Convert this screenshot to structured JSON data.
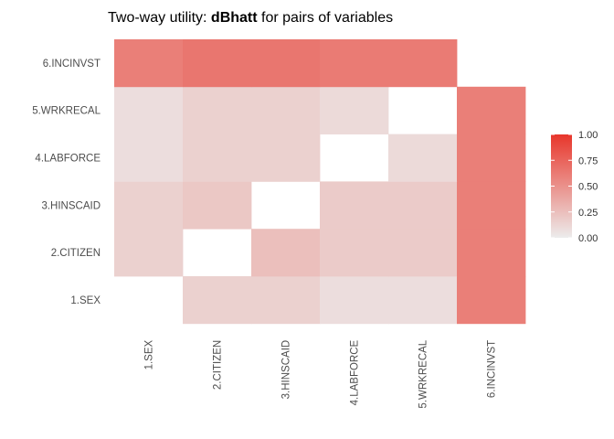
{
  "chart_data": {
    "type": "heatmap",
    "title_prefix": "Two-way utility: ",
    "title_bold": "dBhatt",
    "title_suffix": " for pairs of variables",
    "xlabel": "",
    "ylabel": "",
    "variables": [
      "1.SEX",
      "2.CITIZEN",
      "3.HINSCAID",
      "4.LABFORCE",
      "5.WRKRECAL",
      "6.INCINVST"
    ],
    "scale": {
      "min": 0,
      "max": 1,
      "low_color": "#ececec",
      "high_color": "#e8362b",
      "ticks": [
        "0.00",
        "0.25",
        "0.50",
        "0.75",
        "1.00"
      ]
    },
    "legend_position": "right",
    "grid": false,
    "cells": [
      {
        "x": "2.CITIZEN",
        "y": "1.SEX",
        "value": 0.15
      },
      {
        "x": "3.HINSCAID",
        "y": "1.SEX",
        "value": 0.15
      },
      {
        "x": "4.LABFORCE",
        "y": "1.SEX",
        "value": 0.08
      },
      {
        "x": "5.WRKRECAL",
        "y": "1.SEX",
        "value": 0.08
      },
      {
        "x": "6.INCINVST",
        "y": "1.SEX",
        "value": 0.6
      },
      {
        "x": "1.SEX",
        "y": "2.CITIZEN",
        "value": 0.15
      },
      {
        "x": "3.HINSCAID",
        "y": "2.CITIZEN",
        "value": 0.25
      },
      {
        "x": "4.LABFORCE",
        "y": "2.CITIZEN",
        "value": 0.18
      },
      {
        "x": "5.WRKRECAL",
        "y": "2.CITIZEN",
        "value": 0.18
      },
      {
        "x": "6.INCINVST",
        "y": "2.CITIZEN",
        "value": 0.6
      },
      {
        "x": "1.SEX",
        "y": "3.HINSCAID",
        "value": 0.15
      },
      {
        "x": "2.CITIZEN",
        "y": "3.HINSCAID",
        "value": 0.2
      },
      {
        "x": "4.LABFORCE",
        "y": "3.HINSCAID",
        "value": 0.18
      },
      {
        "x": "5.WRKRECAL",
        "y": "3.HINSCAID",
        "value": 0.18
      },
      {
        "x": "6.INCINVST",
        "y": "3.HINSCAID",
        "value": 0.6
      },
      {
        "x": "1.SEX",
        "y": "4.LABFORCE",
        "value": 0.08
      },
      {
        "x": "2.CITIZEN",
        "y": "4.LABFORCE",
        "value": 0.15
      },
      {
        "x": "3.HINSCAID",
        "y": "4.LABFORCE",
        "value": 0.15
      },
      {
        "x": "5.WRKRECAL",
        "y": "4.LABFORCE",
        "value": 0.1
      },
      {
        "x": "6.INCINVST",
        "y": "4.LABFORCE",
        "value": 0.6
      },
      {
        "x": "1.SEX",
        "y": "5.WRKRECAL",
        "value": 0.08
      },
      {
        "x": "2.CITIZEN",
        "y": "5.WRKRECAL",
        "value": 0.15
      },
      {
        "x": "3.HINSCAID",
        "y": "5.WRKRECAL",
        "value": 0.15
      },
      {
        "x": "4.LABFORCE",
        "y": "5.WRKRECAL",
        "value": 0.1
      },
      {
        "x": "6.INCINVST",
        "y": "5.WRKRECAL",
        "value": 0.6
      },
      {
        "x": "1.SEX",
        "y": "6.INCINVST",
        "value": 0.6
      },
      {
        "x": "2.CITIZEN",
        "y": "6.INCINVST",
        "value": 0.65
      },
      {
        "x": "3.HINSCAID",
        "y": "6.INCINVST",
        "value": 0.65
      },
      {
        "x": "4.LABFORCE",
        "y": "6.INCINVST",
        "value": 0.62
      },
      {
        "x": "5.WRKRECAL",
        "y": "6.INCINVST",
        "value": 0.62
      }
    ]
  }
}
